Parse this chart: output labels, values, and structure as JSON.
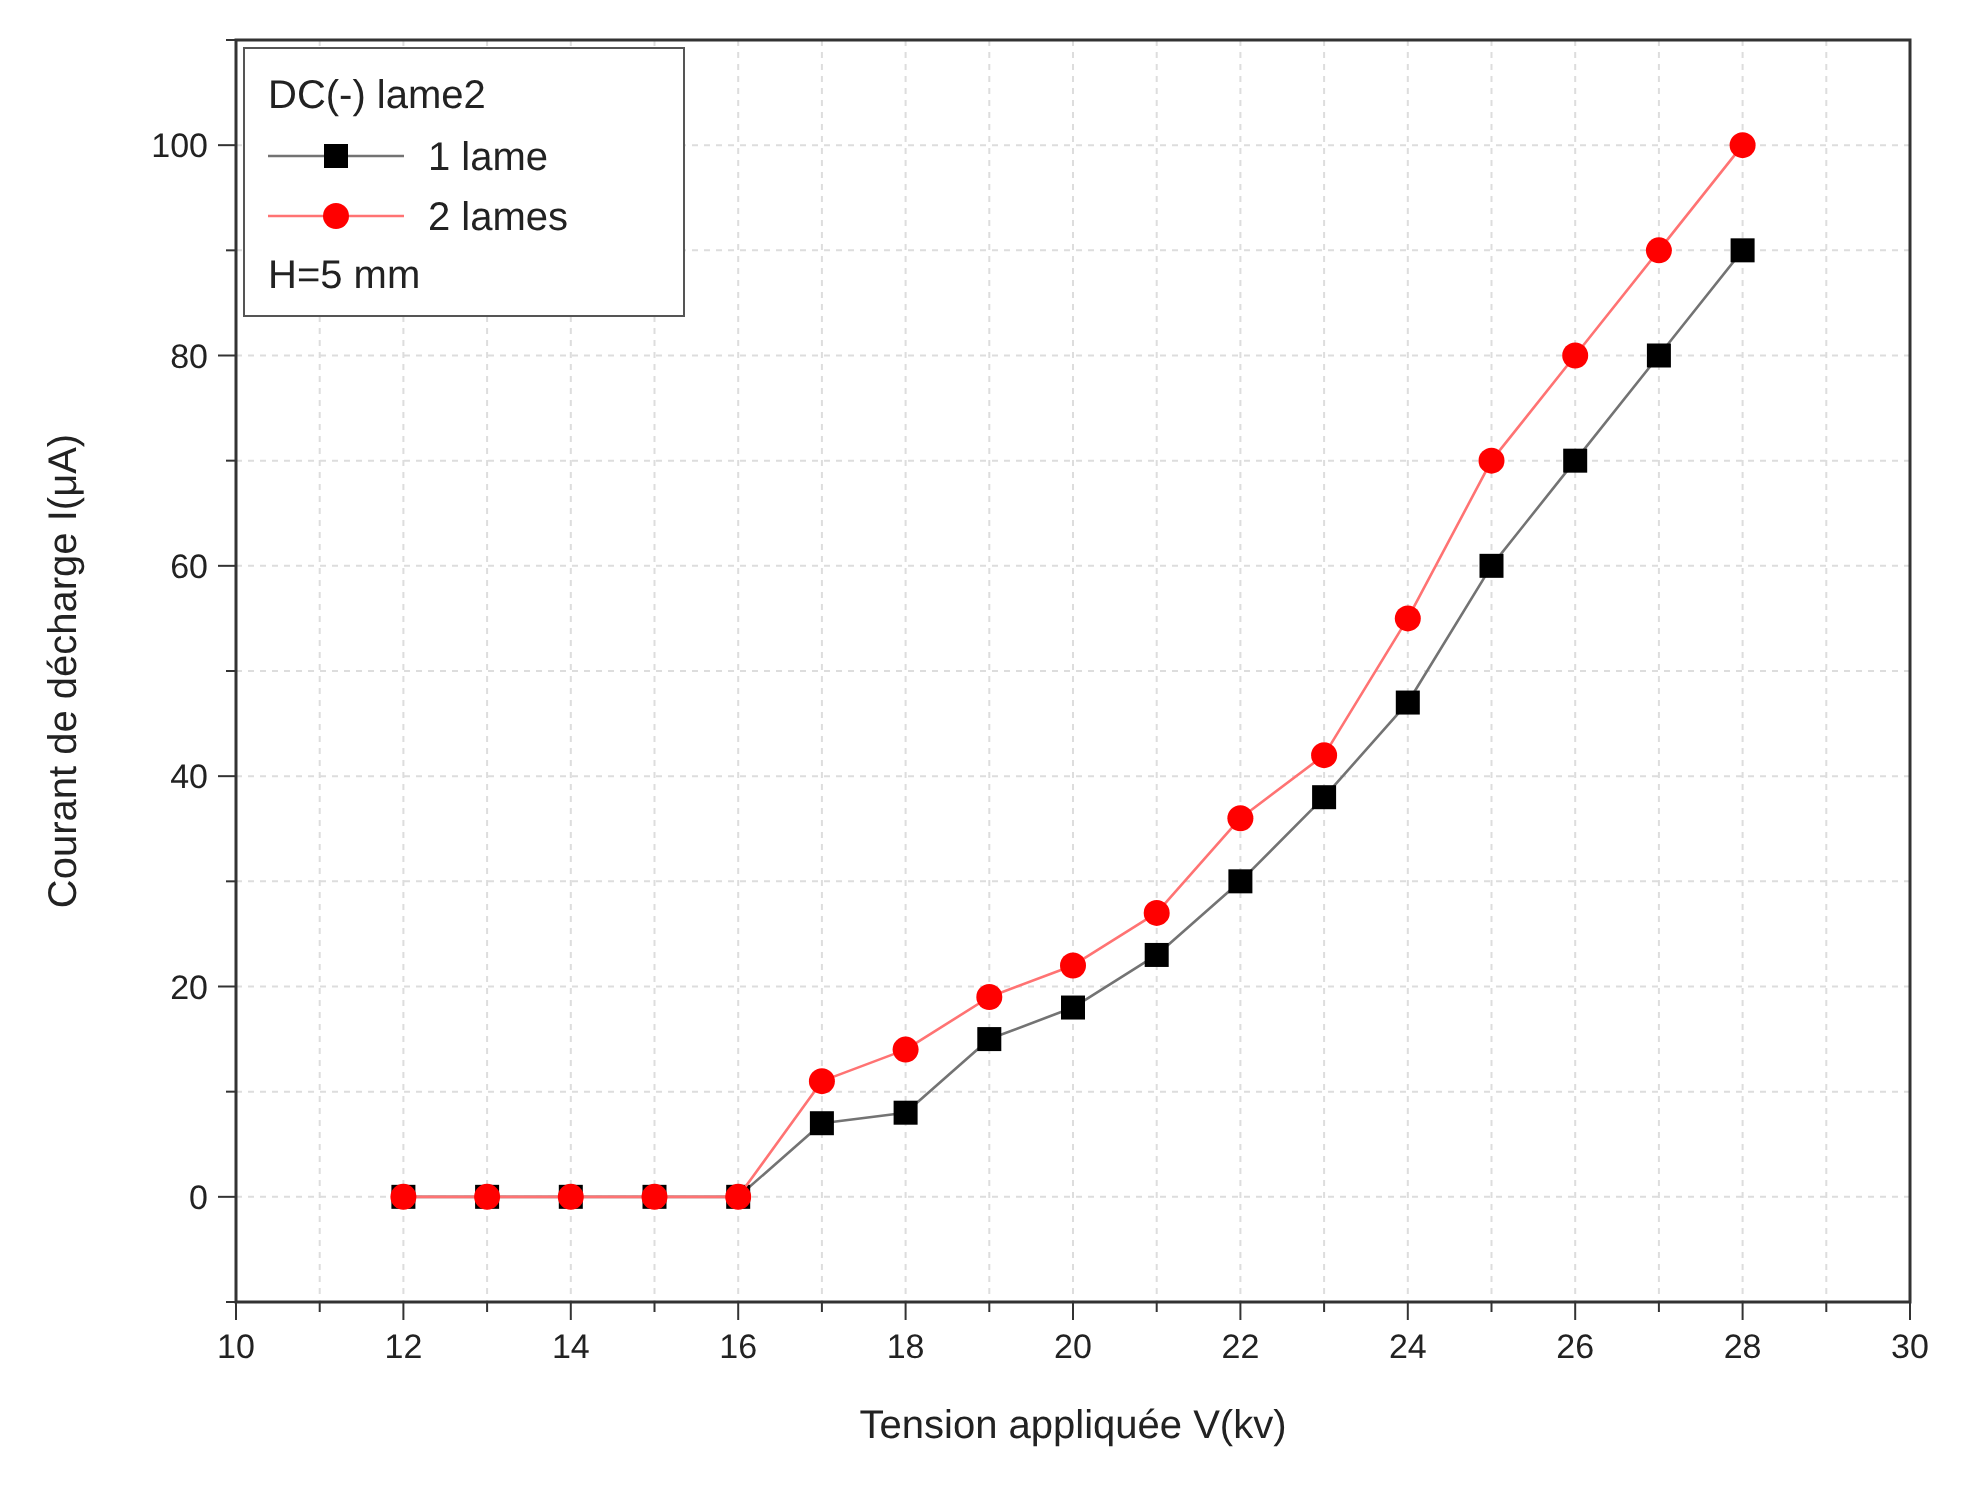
{
  "chart_data": {
    "type": "line",
    "xlabel": "Tension appliquée V(kv)",
    "ylabel": "Courant de décharge I(μA)",
    "legend_title": "DC(-) lame2",
    "annotations": [
      "H=5 mm"
    ],
    "x": [
      12,
      13,
      14,
      15,
      16,
      17,
      18,
      19,
      20,
      21,
      22,
      23,
      24,
      25,
      26,
      27,
      28
    ],
    "series": [
      {
        "name": "1 lame",
        "color": "#000000",
        "marker": "square",
        "values": [
          0,
          0,
          0,
          0,
          0,
          7,
          8,
          15,
          18,
          23,
          30,
          38,
          47,
          60,
          70,
          80,
          90
        ]
      },
      {
        "name": "2 lames",
        "color": "#ff0000",
        "marker": "circle",
        "values": [
          0,
          0,
          0,
          0,
          0,
          11,
          14,
          19,
          22,
          27,
          36,
          42,
          55,
          70,
          80,
          90,
          100
        ]
      }
    ],
    "xlim": [
      10,
      30
    ],
    "xticks": [
      10,
      {
        "value": 11,
        "label": null
      },
      12,
      {
        "value": 13,
        "label": null
      },
      14,
      {
        "value": 15,
        "label": null
      },
      16,
      {
        "value": 17,
        "label": null
      },
      18,
      {
        "value": 19,
        "label": null
      },
      20,
      {
        "value": 21,
        "label": null
      },
      22,
      {
        "value": 23,
        "label": null
      },
      24,
      {
        "value": 25,
        "label": null
      },
      26,
      {
        "value": 27,
        "label": null
      },
      28,
      {
        "value": 29,
        "label": null
      },
      30
    ],
    "ylim": [
      -10,
      110
    ],
    "yticks": [
      {
        "value": -10,
        "label": null
      },
      0,
      {
        "value": 10,
        "label": null
      },
      20,
      {
        "value": 30,
        "label": null
      },
      40,
      {
        "value": 50,
        "label": null
      },
      60,
      {
        "value": 70,
        "label": null
      },
      80,
      {
        "value": 90,
        "label": null
      },
      100,
      {
        "value": 110,
        "label": null
      }
    ],
    "grid": true,
    "legend": "top left"
  }
}
